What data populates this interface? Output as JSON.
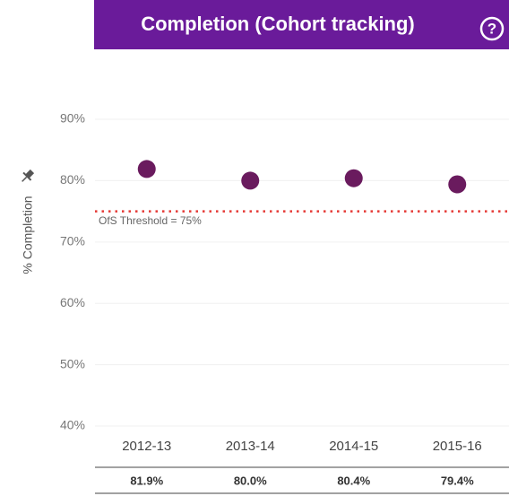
{
  "header": {
    "help": "?"
  },
  "chart_data": {
    "type": "dot",
    "title": "Completion (Cohort tracking)",
    "y_label": "% Completion",
    "categories": [
      "2012-13",
      "2013-14",
      "2014-15",
      "2015-16"
    ],
    "values": [
      81.9,
      80.0,
      80.4,
      79.4
    ],
    "value_labels": [
      "81.9%",
      "80.0%",
      "80.4%",
      "79.4%"
    ],
    "color": "#6a1b5e",
    "ylim": [
      40,
      96
    ],
    "yticks": [
      {
        "value": 40,
        "label": "40%"
      },
      {
        "value": 50,
        "label": "50%"
      },
      {
        "value": 60,
        "label": "60%"
      },
      {
        "value": 70,
        "label": "70%"
      },
      {
        "value": 80,
        "label": "80%"
      },
      {
        "value": 90,
        "label": "90%"
      }
    ],
    "grid": true,
    "threshold": {
      "value": 75,
      "label": "OfS Threshold = 75%",
      "color": "#e53935"
    }
  }
}
